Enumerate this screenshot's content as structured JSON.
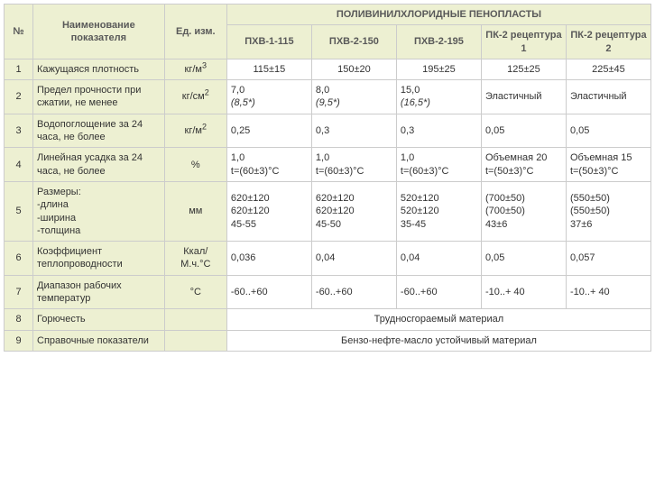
{
  "colors": {
    "header_bg": "#edf0d2",
    "cell_bg": "#ffffff",
    "grid": "#cccccc",
    "text": "#333333",
    "header_text": "#595959"
  },
  "fonts": {
    "family": "Verdana, Arial, sans-serif",
    "size_pt": 11
  },
  "header": {
    "num": "№",
    "name": "Наименование показателя",
    "unit": "Ед. изм.",
    "group": "ПОЛИВИНИЛХЛОРИДНЫЕ ПЕНОПЛАСТЫ",
    "cols": [
      "ПХВ-1-115",
      "ПХВ-2-150",
      "ПХВ-2-195",
      "ПК-2 рецептура 1",
      "ПК-2 рецептура 2"
    ]
  },
  "rows": [
    {
      "n": "1",
      "name": "Кажущаяся плотность",
      "unit_html": "кг/м<sup>3</sup>",
      "vals": [
        "115±15",
        "150±20",
        "195±25",
        "125±25",
        "225±45"
      ],
      "center": true
    },
    {
      "n": "2",
      "name": "Предел прочности при сжатии, не менее",
      "unit_html": "кг/см<sup>2</sup>",
      "vals": [
        "7,0<br><span class=\"italic\">(8,5*)</span>",
        "8,0<br><span class=\"italic\">(9,5*)</span>",
        "15,0<br><span class=\"italic\">(16,5*)</span>",
        "Эластичный",
        "Эластичный"
      ]
    },
    {
      "n": "3",
      "name": "Водопоглощение за 24 часа, не более",
      "unit_html": "кг/м<sup>2</sup>",
      "vals": [
        "0,25",
        "0,3",
        "0,3",
        "0,05",
        "0,05"
      ]
    },
    {
      "n": "4",
      "name": "Линейная усадка за 24 часа, не более",
      "unit_html": "%",
      "vals": [
        "1,0<br>t=(60±3)°C",
        "1,0<br>t=(60±3)°C",
        "1,0<br>t=(60±3)°C",
        "Объемная 20<br>t=(50±3)°C",
        "Объемная 15<br>t=(50±3)°C"
      ]
    },
    {
      "n": "5",
      "name": "Размеры:<br>-длина<br>-ширина<br>-толщина",
      "unit_html": "мм",
      "vals": [
        "620±120<br>620±120<br>45-55",
        "620±120<br>620±120<br>45-50",
        "520±120<br>520±120<br>35-45",
        "(700±50)<br>(700±50)<br>43±6",
        "(550±50)<br>(550±50)<br>37±6"
      ]
    },
    {
      "n": "6",
      "name": "Коэффициент теплопроводности",
      "unit_html": "Ккал/<br>М.ч.°С",
      "vals": [
        "0,036",
        "0,04",
        "0,04",
        "0,05",
        "0,057"
      ]
    },
    {
      "n": "7",
      "name": "Диапазон рабочих температур",
      "unit_html": "°С",
      "vals": [
        "-60..+60",
        "-60..+60",
        "-60..+60",
        "-10..+ 40",
        "-10..+ 40"
      ]
    },
    {
      "n": "8",
      "name": "Горючесть",
      "unit_html": "",
      "merged": "Трудносгораемый материал"
    },
    {
      "n": "9",
      "name": "Справочные показатели",
      "unit_html": "",
      "merged": "Бензо-нефте-масло устойчивый материал"
    }
  ]
}
